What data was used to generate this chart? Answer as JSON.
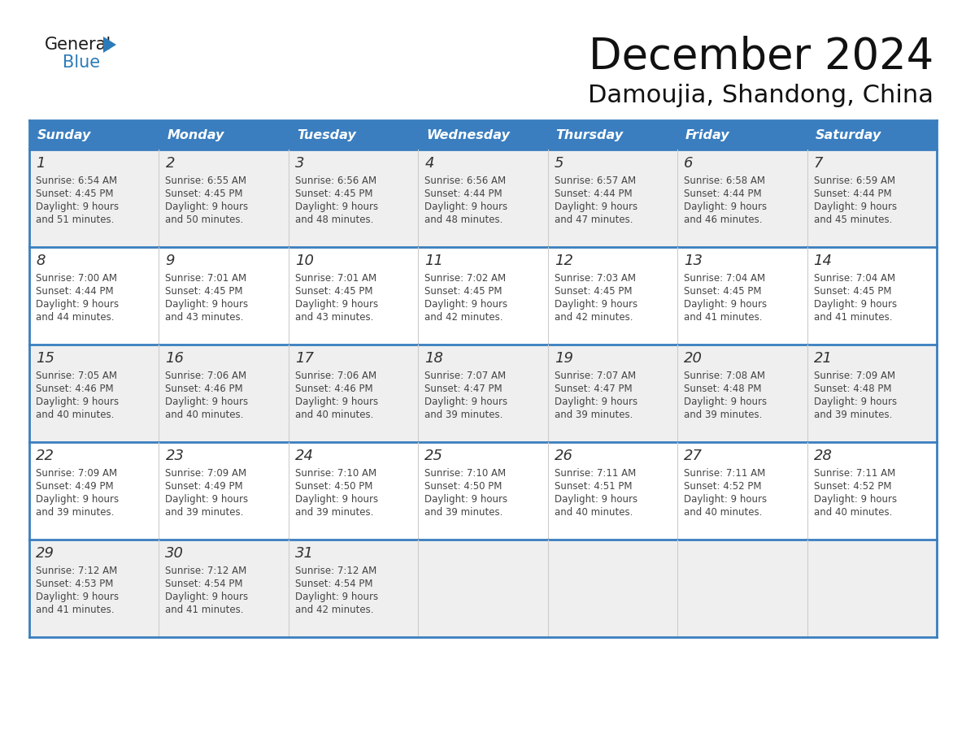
{
  "title": "December 2024",
  "subtitle": "Damoujia, Shandong, China",
  "header_bg": "#3a7ebf",
  "header_text": "#ffffff",
  "day_names": [
    "Sunday",
    "Monday",
    "Tuesday",
    "Wednesday",
    "Thursday",
    "Friday",
    "Saturday"
  ],
  "row_bg_odd": "#efefef",
  "row_bg_even": "#ffffff",
  "cell_text_color": "#333333",
  "day_number_color": "#333333",
  "logo_general_color": "#1a1a1a",
  "logo_blue_color": "#2b7bba",
  "separator_color": "#3a7ebf",
  "days": [
    {
      "day": 1,
      "col": 0,
      "row": 0,
      "sunrise": "6:54 AM",
      "sunset": "4:45 PM",
      "daylight": "9 hours and 51 minutes."
    },
    {
      "day": 2,
      "col": 1,
      "row": 0,
      "sunrise": "6:55 AM",
      "sunset": "4:45 PM",
      "daylight": "9 hours and 50 minutes."
    },
    {
      "day": 3,
      "col": 2,
      "row": 0,
      "sunrise": "6:56 AM",
      "sunset": "4:45 PM",
      "daylight": "9 hours and 48 minutes."
    },
    {
      "day": 4,
      "col": 3,
      "row": 0,
      "sunrise": "6:56 AM",
      "sunset": "4:44 PM",
      "daylight": "9 hours and 48 minutes."
    },
    {
      "day": 5,
      "col": 4,
      "row": 0,
      "sunrise": "6:57 AM",
      "sunset": "4:44 PM",
      "daylight": "9 hours and 47 minutes."
    },
    {
      "day": 6,
      "col": 5,
      "row": 0,
      "sunrise": "6:58 AM",
      "sunset": "4:44 PM",
      "daylight": "9 hours and 46 minutes."
    },
    {
      "day": 7,
      "col": 6,
      "row": 0,
      "sunrise": "6:59 AM",
      "sunset": "4:44 PM",
      "daylight": "9 hours and 45 minutes."
    },
    {
      "day": 8,
      "col": 0,
      "row": 1,
      "sunrise": "7:00 AM",
      "sunset": "4:44 PM",
      "daylight": "9 hours and 44 minutes."
    },
    {
      "day": 9,
      "col": 1,
      "row": 1,
      "sunrise": "7:01 AM",
      "sunset": "4:45 PM",
      "daylight": "9 hours and 43 minutes."
    },
    {
      "day": 10,
      "col": 2,
      "row": 1,
      "sunrise": "7:01 AM",
      "sunset": "4:45 PM",
      "daylight": "9 hours and 43 minutes."
    },
    {
      "day": 11,
      "col": 3,
      "row": 1,
      "sunrise": "7:02 AM",
      "sunset": "4:45 PM",
      "daylight": "9 hours and 42 minutes."
    },
    {
      "day": 12,
      "col": 4,
      "row": 1,
      "sunrise": "7:03 AM",
      "sunset": "4:45 PM",
      "daylight": "9 hours and 42 minutes."
    },
    {
      "day": 13,
      "col": 5,
      "row": 1,
      "sunrise": "7:04 AM",
      "sunset": "4:45 PM",
      "daylight": "9 hours and 41 minutes."
    },
    {
      "day": 14,
      "col": 6,
      "row": 1,
      "sunrise": "7:04 AM",
      "sunset": "4:45 PM",
      "daylight": "9 hours and 41 minutes."
    },
    {
      "day": 15,
      "col": 0,
      "row": 2,
      "sunrise": "7:05 AM",
      "sunset": "4:46 PM",
      "daylight": "9 hours and 40 minutes."
    },
    {
      "day": 16,
      "col": 1,
      "row": 2,
      "sunrise": "7:06 AM",
      "sunset": "4:46 PM",
      "daylight": "9 hours and 40 minutes."
    },
    {
      "day": 17,
      "col": 2,
      "row": 2,
      "sunrise": "7:06 AM",
      "sunset": "4:46 PM",
      "daylight": "9 hours and 40 minutes."
    },
    {
      "day": 18,
      "col": 3,
      "row": 2,
      "sunrise": "7:07 AM",
      "sunset": "4:47 PM",
      "daylight": "9 hours and 39 minutes."
    },
    {
      "day": 19,
      "col": 4,
      "row": 2,
      "sunrise": "7:07 AM",
      "sunset": "4:47 PM",
      "daylight": "9 hours and 39 minutes."
    },
    {
      "day": 20,
      "col": 5,
      "row": 2,
      "sunrise": "7:08 AM",
      "sunset": "4:48 PM",
      "daylight": "9 hours and 39 minutes."
    },
    {
      "day": 21,
      "col": 6,
      "row": 2,
      "sunrise": "7:09 AM",
      "sunset": "4:48 PM",
      "daylight": "9 hours and 39 minutes."
    },
    {
      "day": 22,
      "col": 0,
      "row": 3,
      "sunrise": "7:09 AM",
      "sunset": "4:49 PM",
      "daylight": "9 hours and 39 minutes."
    },
    {
      "day": 23,
      "col": 1,
      "row": 3,
      "sunrise": "7:09 AM",
      "sunset": "4:49 PM",
      "daylight": "9 hours and 39 minutes."
    },
    {
      "day": 24,
      "col": 2,
      "row": 3,
      "sunrise": "7:10 AM",
      "sunset": "4:50 PM",
      "daylight": "9 hours and 39 minutes."
    },
    {
      "day": 25,
      "col": 3,
      "row": 3,
      "sunrise": "7:10 AM",
      "sunset": "4:50 PM",
      "daylight": "9 hours and 39 minutes."
    },
    {
      "day": 26,
      "col": 4,
      "row": 3,
      "sunrise": "7:11 AM",
      "sunset": "4:51 PM",
      "daylight": "9 hours and 40 minutes."
    },
    {
      "day": 27,
      "col": 5,
      "row": 3,
      "sunrise": "7:11 AM",
      "sunset": "4:52 PM",
      "daylight": "9 hours and 40 minutes."
    },
    {
      "day": 28,
      "col": 6,
      "row": 3,
      "sunrise": "7:11 AM",
      "sunset": "4:52 PM",
      "daylight": "9 hours and 40 minutes."
    },
    {
      "day": 29,
      "col": 0,
      "row": 4,
      "sunrise": "7:12 AM",
      "sunset": "4:53 PM",
      "daylight": "9 hours and 41 minutes."
    },
    {
      "day": 30,
      "col": 1,
      "row": 4,
      "sunrise": "7:12 AM",
      "sunset": "4:54 PM",
      "daylight": "9 hours and 41 minutes."
    },
    {
      "day": 31,
      "col": 2,
      "row": 4,
      "sunrise": "7:12 AM",
      "sunset": "4:54 PM",
      "daylight": "9 hours and 42 minutes."
    }
  ]
}
